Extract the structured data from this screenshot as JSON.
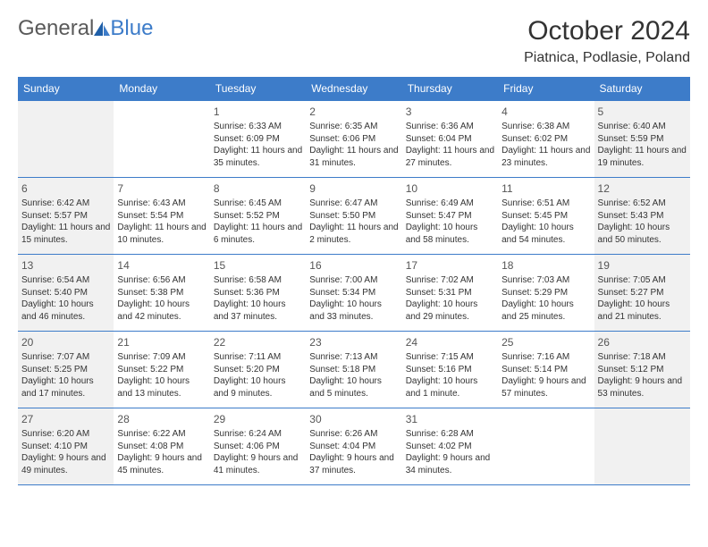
{
  "logo": {
    "text1": "General",
    "text2": "Blue"
  },
  "title": "October 2024",
  "location": "Piatnica, Podlasie, Poland",
  "colors": {
    "header_bg": "#3d7cc9",
    "header_fg": "#ffffff",
    "weekend_bg": "#f1f1f1",
    "text": "#333333",
    "border": "#3d7cc9"
  },
  "typography": {
    "title_fontsize": 30,
    "location_fontsize": 16,
    "dayheader_fontsize": 12,
    "daynum_fontsize": 12,
    "body_fontsize": 10
  },
  "day_headers": [
    "Sunday",
    "Monday",
    "Tuesday",
    "Wednesday",
    "Thursday",
    "Friday",
    "Saturday"
  ],
  "weeks": [
    [
      {
        "n": "",
        "sr": "",
        "ss": "",
        "dl": "",
        "wknd": true
      },
      {
        "n": "",
        "sr": "",
        "ss": "",
        "dl": "",
        "wknd": false
      },
      {
        "n": "1",
        "sr": "Sunrise: 6:33 AM",
        "ss": "Sunset: 6:09 PM",
        "dl": "Daylight: 11 hours and 35 minutes.",
        "wknd": false
      },
      {
        "n": "2",
        "sr": "Sunrise: 6:35 AM",
        "ss": "Sunset: 6:06 PM",
        "dl": "Daylight: 11 hours and 31 minutes.",
        "wknd": false
      },
      {
        "n": "3",
        "sr": "Sunrise: 6:36 AM",
        "ss": "Sunset: 6:04 PM",
        "dl": "Daylight: 11 hours and 27 minutes.",
        "wknd": false
      },
      {
        "n": "4",
        "sr": "Sunrise: 6:38 AM",
        "ss": "Sunset: 6:02 PM",
        "dl": "Daylight: 11 hours and 23 minutes.",
        "wknd": false
      },
      {
        "n": "5",
        "sr": "Sunrise: 6:40 AM",
        "ss": "Sunset: 5:59 PM",
        "dl": "Daylight: 11 hours and 19 minutes.",
        "wknd": true
      }
    ],
    [
      {
        "n": "6",
        "sr": "Sunrise: 6:42 AM",
        "ss": "Sunset: 5:57 PM",
        "dl": "Daylight: 11 hours and 15 minutes.",
        "wknd": true
      },
      {
        "n": "7",
        "sr": "Sunrise: 6:43 AM",
        "ss": "Sunset: 5:54 PM",
        "dl": "Daylight: 11 hours and 10 minutes.",
        "wknd": false
      },
      {
        "n": "8",
        "sr": "Sunrise: 6:45 AM",
        "ss": "Sunset: 5:52 PM",
        "dl": "Daylight: 11 hours and 6 minutes.",
        "wknd": false
      },
      {
        "n": "9",
        "sr": "Sunrise: 6:47 AM",
        "ss": "Sunset: 5:50 PM",
        "dl": "Daylight: 11 hours and 2 minutes.",
        "wknd": false
      },
      {
        "n": "10",
        "sr": "Sunrise: 6:49 AM",
        "ss": "Sunset: 5:47 PM",
        "dl": "Daylight: 10 hours and 58 minutes.",
        "wknd": false
      },
      {
        "n": "11",
        "sr": "Sunrise: 6:51 AM",
        "ss": "Sunset: 5:45 PM",
        "dl": "Daylight: 10 hours and 54 minutes.",
        "wknd": false
      },
      {
        "n": "12",
        "sr": "Sunrise: 6:52 AM",
        "ss": "Sunset: 5:43 PM",
        "dl": "Daylight: 10 hours and 50 minutes.",
        "wknd": true
      }
    ],
    [
      {
        "n": "13",
        "sr": "Sunrise: 6:54 AM",
        "ss": "Sunset: 5:40 PM",
        "dl": "Daylight: 10 hours and 46 minutes.",
        "wknd": true
      },
      {
        "n": "14",
        "sr": "Sunrise: 6:56 AM",
        "ss": "Sunset: 5:38 PM",
        "dl": "Daylight: 10 hours and 42 minutes.",
        "wknd": false
      },
      {
        "n": "15",
        "sr": "Sunrise: 6:58 AM",
        "ss": "Sunset: 5:36 PM",
        "dl": "Daylight: 10 hours and 37 minutes.",
        "wknd": false
      },
      {
        "n": "16",
        "sr": "Sunrise: 7:00 AM",
        "ss": "Sunset: 5:34 PM",
        "dl": "Daylight: 10 hours and 33 minutes.",
        "wknd": false
      },
      {
        "n": "17",
        "sr": "Sunrise: 7:02 AM",
        "ss": "Sunset: 5:31 PM",
        "dl": "Daylight: 10 hours and 29 minutes.",
        "wknd": false
      },
      {
        "n": "18",
        "sr": "Sunrise: 7:03 AM",
        "ss": "Sunset: 5:29 PM",
        "dl": "Daylight: 10 hours and 25 minutes.",
        "wknd": false
      },
      {
        "n": "19",
        "sr": "Sunrise: 7:05 AM",
        "ss": "Sunset: 5:27 PM",
        "dl": "Daylight: 10 hours and 21 minutes.",
        "wknd": true
      }
    ],
    [
      {
        "n": "20",
        "sr": "Sunrise: 7:07 AM",
        "ss": "Sunset: 5:25 PM",
        "dl": "Daylight: 10 hours and 17 minutes.",
        "wknd": true
      },
      {
        "n": "21",
        "sr": "Sunrise: 7:09 AM",
        "ss": "Sunset: 5:22 PM",
        "dl": "Daylight: 10 hours and 13 minutes.",
        "wknd": false
      },
      {
        "n": "22",
        "sr": "Sunrise: 7:11 AM",
        "ss": "Sunset: 5:20 PM",
        "dl": "Daylight: 10 hours and 9 minutes.",
        "wknd": false
      },
      {
        "n": "23",
        "sr": "Sunrise: 7:13 AM",
        "ss": "Sunset: 5:18 PM",
        "dl": "Daylight: 10 hours and 5 minutes.",
        "wknd": false
      },
      {
        "n": "24",
        "sr": "Sunrise: 7:15 AM",
        "ss": "Sunset: 5:16 PM",
        "dl": "Daylight: 10 hours and 1 minute.",
        "wknd": false
      },
      {
        "n": "25",
        "sr": "Sunrise: 7:16 AM",
        "ss": "Sunset: 5:14 PM",
        "dl": "Daylight: 9 hours and 57 minutes.",
        "wknd": false
      },
      {
        "n": "26",
        "sr": "Sunrise: 7:18 AM",
        "ss": "Sunset: 5:12 PM",
        "dl": "Daylight: 9 hours and 53 minutes.",
        "wknd": true
      }
    ],
    [
      {
        "n": "27",
        "sr": "Sunrise: 6:20 AM",
        "ss": "Sunset: 4:10 PM",
        "dl": "Daylight: 9 hours and 49 minutes.",
        "wknd": true
      },
      {
        "n": "28",
        "sr": "Sunrise: 6:22 AM",
        "ss": "Sunset: 4:08 PM",
        "dl": "Daylight: 9 hours and 45 minutes.",
        "wknd": false
      },
      {
        "n": "29",
        "sr": "Sunrise: 6:24 AM",
        "ss": "Sunset: 4:06 PM",
        "dl": "Daylight: 9 hours and 41 minutes.",
        "wknd": false
      },
      {
        "n": "30",
        "sr": "Sunrise: 6:26 AM",
        "ss": "Sunset: 4:04 PM",
        "dl": "Daylight: 9 hours and 37 minutes.",
        "wknd": false
      },
      {
        "n": "31",
        "sr": "Sunrise: 6:28 AM",
        "ss": "Sunset: 4:02 PM",
        "dl": "Daylight: 9 hours and 34 minutes.",
        "wknd": false
      },
      {
        "n": "",
        "sr": "",
        "ss": "",
        "dl": "",
        "wknd": false
      },
      {
        "n": "",
        "sr": "",
        "ss": "",
        "dl": "",
        "wknd": true
      }
    ]
  ]
}
